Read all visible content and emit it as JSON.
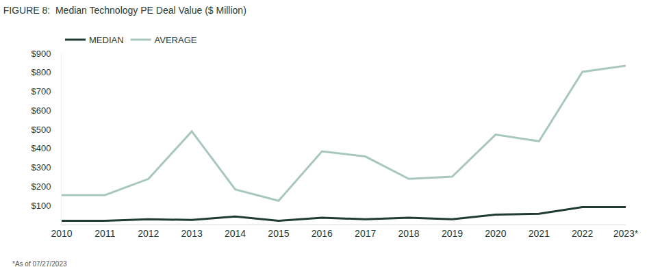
{
  "chart_data": {
    "type": "line",
    "title": "FIGURE 8:  Median Technology PE Deal Value ($ Million)",
    "footnote": "*As of 07/27/2023",
    "categories": [
      "2010",
      "2011",
      "2012",
      "2013",
      "2014",
      "2015",
      "2016",
      "2017",
      "2018",
      "2019",
      "2020",
      "2021",
      "2022",
      "2023*"
    ],
    "series": [
      {
        "name": "MEDIAN",
        "color": "#1f3b34",
        "values": [
          20,
          20,
          28,
          24,
          42,
          20,
          36,
          28,
          36,
          28,
          52,
          57,
          92,
          92
        ]
      },
      {
        "name": "AVERAGE",
        "color": "#a9c8bc",
        "values": [
          155,
          155,
          240,
          490,
          185,
          125,
          385,
          358,
          240,
          252,
          473,
          438,
          803,
          835
        ]
      }
    ],
    "ylim": [
      0,
      900
    ],
    "yticks": [
      {
        "value": 100,
        "label": "$100"
      },
      {
        "value": 200,
        "label": "$200"
      },
      {
        "value": 300,
        "label": "$300"
      },
      {
        "value": 400,
        "label": "$400"
      },
      {
        "value": 500,
        "label": "$500"
      },
      {
        "value": 600,
        "label": "$600"
      },
      {
        "value": 700,
        "label": "$700"
      },
      {
        "value": 800,
        "label": "$800"
      },
      {
        "value": 900,
        "label": "$900"
      }
    ],
    "grid": false,
    "legend": "top-left"
  }
}
